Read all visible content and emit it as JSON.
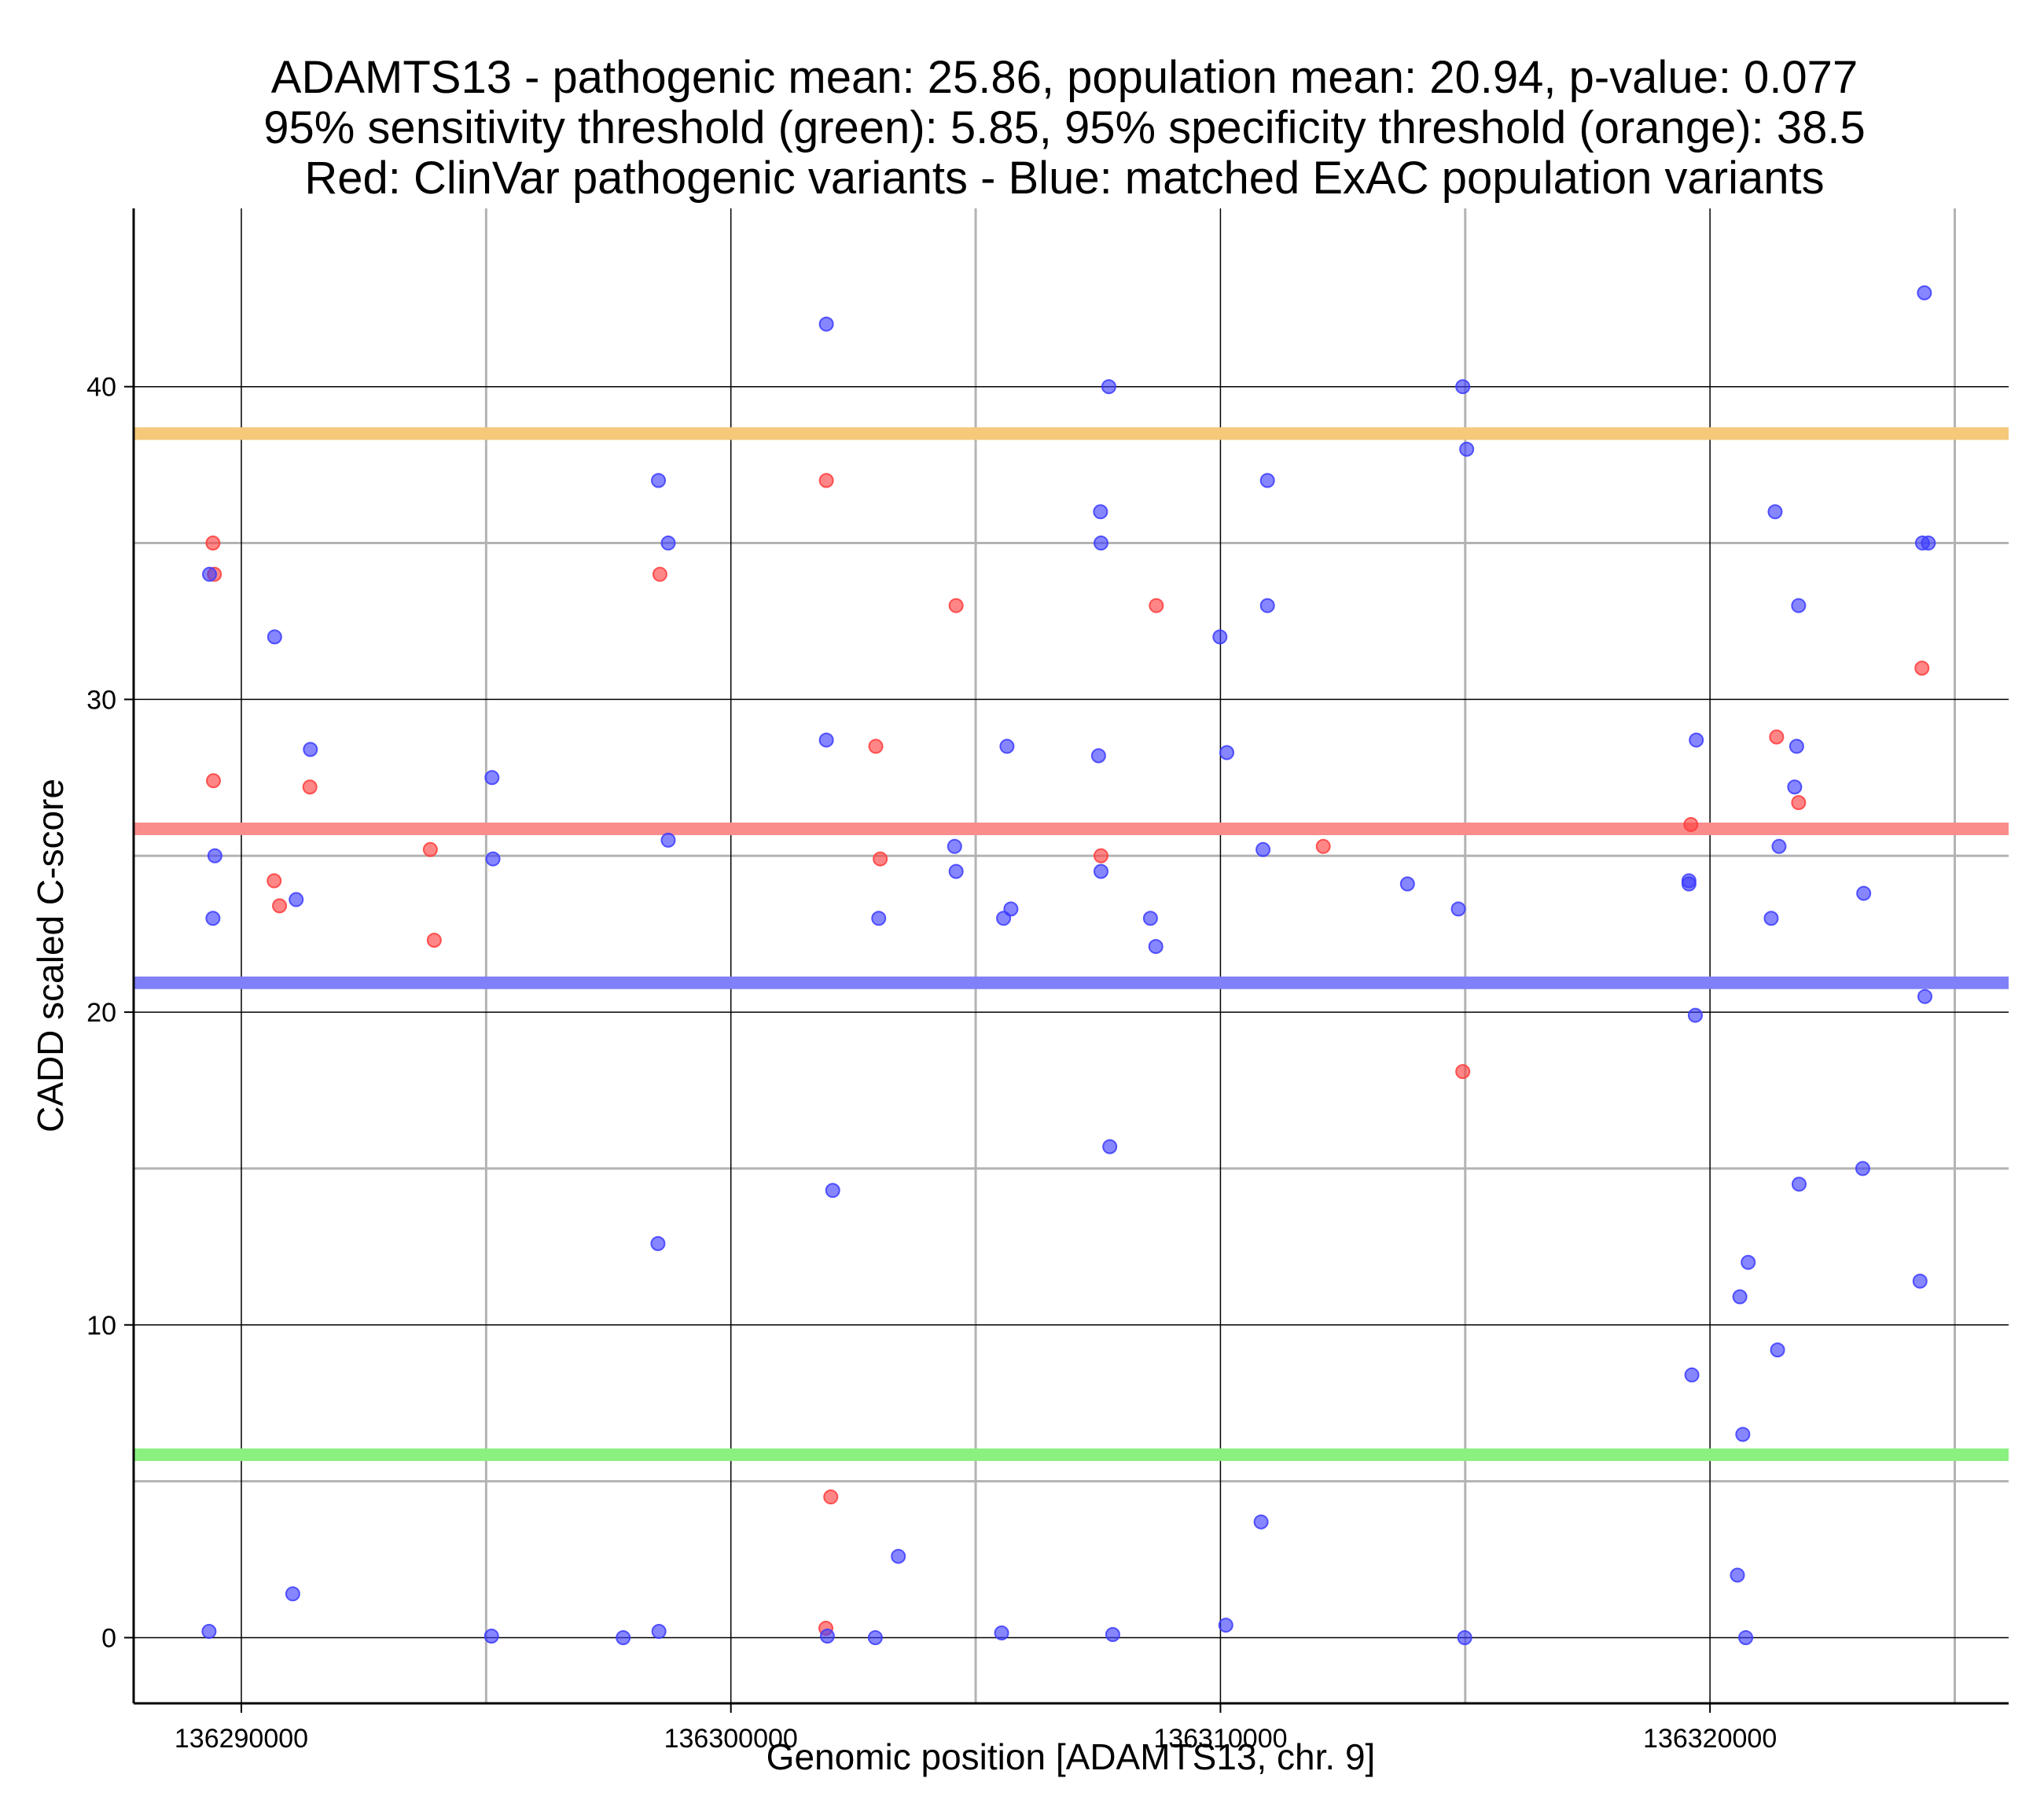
{
  "chart_data": {
    "type": "scatter",
    "title": [
      "ADAMTS13 - pathogenic mean: 25.86, population mean: 20.94, p-value: 0.077",
      "95% sensitivity threshold (green): 5.85, 95% specificity threshold (orange): 38.5",
      "Red: ClinVar pathogenic variants - Blue: matched ExAC population variants"
    ],
    "xlabel": "Genomic position [ADAMTS13, chr. 9]",
    "ylabel": "CADD scaled C-score",
    "xlim": [
      136287800,
      136326100
    ],
    "ylim": [
      -2.1,
      45.7
    ],
    "x_major_ticks": [
      136290000,
      136300000,
      136310000,
      136320000
    ],
    "x_minor_ticks": [
      136295000,
      136305000,
      136315000,
      136325000
    ],
    "y_major_ticks": [
      0,
      10,
      20,
      30,
      40
    ],
    "y_minor_ticks": [
      5,
      15,
      25,
      35
    ],
    "x_tick_labels": [
      "136290000",
      "136300000",
      "136310000",
      "136320000"
    ],
    "y_tick_labels": [
      "0",
      "10",
      "20",
      "30",
      "40"
    ],
    "grid": true,
    "hlines": [
      {
        "y": 38.5,
        "color": "#f5c87a"
      },
      {
        "y": 25.86,
        "color": "#fa8c8c"
      },
      {
        "y": 20.94,
        "color": "#8080f8"
      },
      {
        "y": 5.85,
        "color": "#8af080"
      }
    ],
    "series": [
      {
        "color": "#ff3b3b",
        "points": [
          [
            136289420,
            35
          ],
          [
            136289450,
            34
          ],
          [
            136289430,
            27.4
          ],
          [
            136290670,
            24.2
          ],
          [
            136290780,
            23.4
          ],
          [
            136291400,
            27.2
          ],
          [
            136293860,
            25.2
          ],
          [
            136293940,
            22.3
          ],
          [
            136298550,
            34
          ],
          [
            136301950,
            37
          ],
          [
            136302960,
            28.5
          ],
          [
            136303050,
            24.9
          ],
          [
            136304600,
            33
          ],
          [
            136308690,
            33
          ],
          [
            136307560,
            25
          ],
          [
            136312100,
            25.3
          ],
          [
            136314950,
            18.1
          ],
          [
            136319610,
            26
          ],
          [
            136321360,
            28.8
          ],
          [
            136321810,
            26.7
          ],
          [
            136324330,
            31
          ],
          [
            136302040,
            4.5
          ],
          [
            136301940,
            0.3
          ]
        ]
      },
      {
        "color": "#3b3bff",
        "points": [
          [
            136289350,
            34
          ],
          [
            136289420,
            23
          ],
          [
            136289460,
            25
          ],
          [
            136290680,
            32
          ],
          [
            136291120,
            23.6
          ],
          [
            136291410,
            28.4
          ],
          [
            136295120,
            27.5
          ],
          [
            136295140,
            24.9
          ],
          [
            136298520,
            37
          ],
          [
            136298720,
            35
          ],
          [
            136298720,
            25.5
          ],
          [
            136298510,
            12.6
          ],
          [
            136301950,
            42
          ],
          [
            136301950,
            28.7
          ],
          [
            136303020,
            23
          ],
          [
            136304570,
            25.3
          ],
          [
            136304600,
            24.5
          ],
          [
            136305570,
            23
          ],
          [
            136305640,
            28.5
          ],
          [
            136305720,
            23.3
          ],
          [
            136307550,
            36
          ],
          [
            136307560,
            35
          ],
          [
            136307510,
            28.2
          ],
          [
            136307560,
            24.5
          ],
          [
            136307720,
            40
          ],
          [
            136307740,
            15.7
          ],
          [
            136308570,
            23
          ],
          [
            136308680,
            22.1
          ],
          [
            136309990,
            32
          ],
          [
            136310130,
            28.3
          ],
          [
            136310870,
            25.2
          ],
          [
            136310960,
            37
          ],
          [
            136310960,
            33
          ],
          [
            136314950,
            40
          ],
          [
            136315030,
            38
          ],
          [
            136313820,
            24.1
          ],
          [
            136314860,
            23.3
          ],
          [
            136319570,
            24.2
          ],
          [
            136319570,
            24.1
          ],
          [
            136319720,
            28.7
          ],
          [
            136319700,
            19.9
          ],
          [
            136321330,
            36
          ],
          [
            136321410,
            25.3
          ],
          [
            136321250,
            23
          ],
          [
            136321810,
            33
          ],
          [
            136321770,
            28.5
          ],
          [
            136321730,
            27.2
          ],
          [
            136321820,
            14.5
          ],
          [
            136323140,
            23.8
          ],
          [
            136323120,
            15
          ],
          [
            136324380,
            43
          ],
          [
            136324340,
            35
          ],
          [
            136324460,
            35
          ],
          [
            136324390,
            20.5
          ],
          [
            136324290,
            11.4
          ],
          [
            136320780,
            12
          ],
          [
            136320610,
            10.9
          ],
          [
            136321380,
            9.2
          ],
          [
            136319630,
            8.4
          ],
          [
            136320670,
            6.5
          ],
          [
            136302080,
            14.3
          ],
          [
            136303420,
            2.6
          ],
          [
            136310830,
            3.7
          ],
          [
            136320560,
            2
          ],
          [
            136291050,
            1.4
          ],
          [
            136289340,
            0.2
          ],
          [
            136295110,
            0.05
          ],
          [
            136297800,
            0.0
          ],
          [
            136298530,
            0.2
          ],
          [
            136301970,
            0.05
          ],
          [
            136302950,
            0.0
          ],
          [
            136305530,
            0.15
          ],
          [
            136307800,
            0.1
          ],
          [
            136310110,
            0.4
          ],
          [
            136314990,
            0.0
          ],
          [
            136320730,
            0.0
          ]
        ]
      }
    ]
  }
}
